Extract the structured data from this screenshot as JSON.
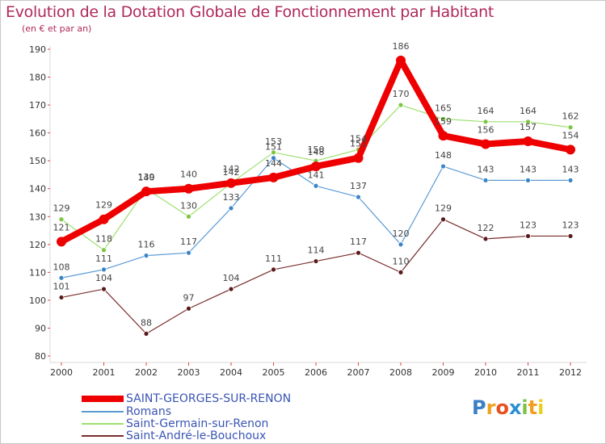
{
  "title": "Evolution de la Dotation Globale de Fonctionnement par Habitant",
  "subtitle": "(en € et par an)",
  "logo_text": "Proxiti",
  "colors": {
    "title": "#b0285a",
    "axis": "#d9d9d9",
    "legend_text": "#3a55b4",
    "logo_p": "#3b7fc4",
    "logo_r": "#f0a020",
    "logo_o": "#e85020",
    "logo_x": "#2a8fd0",
    "logo_i": "#7cc242",
    "logo_t": "#f0a020",
    "logo_i2": "#e8d020"
  },
  "chart_data": {
    "type": "line",
    "title": "Evolution de la Dotation Globale de Fonctionnement par Habitant",
    "subtitle": "(en € et par an)",
    "xlabel": "",
    "ylabel": "",
    "categories": [
      "2000",
      "2001",
      "2002",
      "2003",
      "2004",
      "2005",
      "2006",
      "2007",
      "2008",
      "2009",
      "2010",
      "2011",
      "2012"
    ],
    "ylim": [
      80,
      190
    ],
    "yticks": [
      80,
      90,
      100,
      110,
      120,
      130,
      140,
      150,
      160,
      170,
      180,
      190
    ],
    "grid": false,
    "legend_position": "bottom-left",
    "series": [
      {
        "name": "SAINT-GEORGES-SUR-RENON",
        "color": "#ee0000",
        "emphasis": true,
        "values": [
          121,
          129,
          139,
          140,
          142,
          144,
          148,
          151,
          186,
          159,
          156,
          157,
          154
        ],
        "labels": [
          "121",
          "129",
          "139",
          "140",
          "142",
          "144",
          "148",
          "151",
          "186",
          "159",
          "156",
          "157",
          "154"
        ]
      },
      {
        "name": "Romans",
        "color": "#5b9bd5",
        "marker": "#3a85c8",
        "values": [
          108,
          111,
          116,
          117,
          133,
          151,
          141,
          137,
          120,
          148,
          143,
          143,
          143
        ],
        "labels": [
          "108",
          "111",
          "116",
          "117",
          "133",
          "151",
          "141",
          "137",
          "120",
          "148",
          "143",
          "143",
          "143"
        ]
      },
      {
        "name": "Saint-Germain-sur-Renon",
        "color": "#9ee070",
        "marker": "#7cc63e",
        "values": [
          129,
          118,
          140,
          130,
          142,
          153,
          150,
          154,
          170,
          165,
          164,
          164,
          162
        ],
        "labels": [
          "129",
          "118",
          "140",
          "130",
          "142",
          "153",
          "150",
          "154",
          "170",
          "165",
          "164",
          "164",
          "162"
        ]
      },
      {
        "name": "Saint-André-le-Bouchoux",
        "color": "#7a2c2c",
        "marker": "#5a1a1a",
        "values": [
          101,
          104,
          88,
          97,
          104,
          111,
          114,
          117,
          110,
          129,
          122,
          123,
          123
        ],
        "labels": [
          "101",
          "104",
          "88",
          "97",
          "104",
          "111",
          "114",
          "117",
          "110",
          "129",
          "122",
          "123",
          "123"
        ]
      }
    ]
  }
}
